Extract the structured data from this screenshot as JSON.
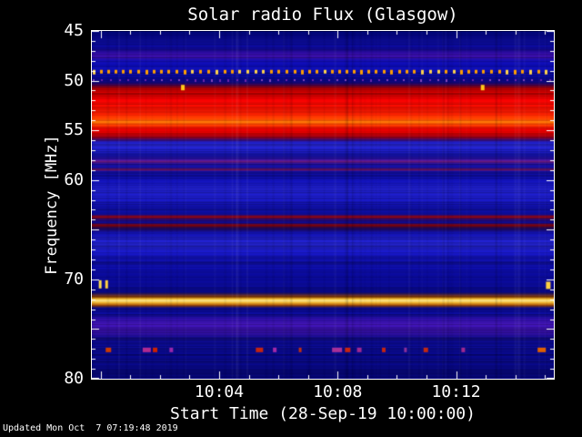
{
  "footer": "Updated Mon Oct  7 07:19:48 2019",
  "chart_data": {
    "type": "heatmap",
    "title": "Solar radio Flux (Glasgow)",
    "xlabel": "Start Time (28-Sep-19 10:00:00)",
    "ylabel": "Frequency [MHz]",
    "x_unit": "minutes after 10:00:00 on 28-Sep-19",
    "x_range": [
      -0.3,
      15.3
    ],
    "x_minor_step": 1,
    "x_major_ticks": [
      {
        "minute": 0,
        "label": ""
      },
      {
        "minute": 4,
        "label": "10:04"
      },
      {
        "minute": 8,
        "label": "10:08"
      },
      {
        "minute": 12,
        "label": "10:12"
      }
    ],
    "y_range": [
      45,
      80
    ],
    "y_axis_inverted": true,
    "y_minor_step": 1,
    "y_major_ticks": [
      {
        "f": 45,
        "label": "45"
      },
      {
        "f": 50,
        "label": "50"
      },
      {
        "f": 55,
        "label": "55"
      },
      {
        "f": 60,
        "label": "60"
      },
      {
        "f": 65,
        "label": ""
      },
      {
        "f": 70,
        "label": "70"
      },
      {
        "f": 75,
        "label": ""
      },
      {
        "f": 80,
        "label": "80"
      }
    ],
    "background": "#000000",
    "axis_color": "#ffffff",
    "noise_seed": 7,
    "frequency_profile": [
      [
        45.0,
        "#000670"
      ],
      [
        45.5,
        "#05057e"
      ],
      [
        46.0,
        "#0c0c9a"
      ],
      [
        46.4,
        "#0a0a92"
      ],
      [
        46.8,
        "#100a9e"
      ],
      [
        47.2,
        "#2e0c9e"
      ],
      [
        47.6,
        "#3c10aa"
      ],
      [
        48.0,
        "#120ead"
      ],
      [
        48.4,
        "#0c0ca6"
      ],
      [
        48.9,
        "#0e0eb0"
      ],
      [
        49.4,
        "#0a0aa0"
      ],
      [
        49.8,
        "#070784"
      ],
      [
        50.2,
        "#12087e"
      ],
      [
        50.5,
        "#4c0030"
      ],
      [
        50.8,
        "#a80000"
      ],
      [
        51.2,
        "#de0000"
      ],
      [
        52.0,
        "#e60202"
      ],
      [
        52.8,
        "#e81000"
      ],
      [
        53.4,
        "#f02000"
      ],
      [
        53.9,
        "#ff4a00"
      ],
      [
        54.15,
        "#ff7a08"
      ],
      [
        54.45,
        "#ff3c00"
      ],
      [
        54.9,
        "#e00000"
      ],
      [
        55.3,
        "#cc0000"
      ],
      [
        55.7,
        "#8c0018"
      ],
      [
        55.95,
        "#3c0a64"
      ],
      [
        56.2,
        "#1c1cb2"
      ],
      [
        56.6,
        "#2626cc"
      ],
      [
        57.0,
        "#1c1cb8"
      ],
      [
        57.5,
        "#1212a4"
      ],
      [
        57.9,
        "#2a109c"
      ],
      [
        58.15,
        "#6e1a80"
      ],
      [
        58.4,
        "#1a109c"
      ],
      [
        58.75,
        "#12109a"
      ],
      [
        58.95,
        "#7c1458"
      ],
      [
        59.15,
        "#100e98"
      ],
      [
        59.7,
        "#0e0ea2"
      ],
      [
        60.3,
        "#1414b2"
      ],
      [
        60.9,
        "#2020c8"
      ],
      [
        61.7,
        "#1c1cc0"
      ],
      [
        62.4,
        "#1212a8"
      ],
      [
        63.0,
        "#0e0e9c"
      ],
      [
        63.45,
        "#0c0c92"
      ],
      [
        63.7,
        "#8c0404"
      ],
      [
        63.95,
        "#2a0866"
      ],
      [
        64.3,
        "#0a0a88"
      ],
      [
        64.55,
        "#840404"
      ],
      [
        64.85,
        "#22085c"
      ],
      [
        65.3,
        "#10109e"
      ],
      [
        65.8,
        "#1c1cbe"
      ],
      [
        66.5,
        "#2424ce"
      ],
      [
        67.1,
        "#1a1abe"
      ],
      [
        67.7,
        "#1212aa"
      ],
      [
        68.4,
        "#0e0ea0"
      ],
      [
        69.1,
        "#0c0c98"
      ],
      [
        69.8,
        "#0a0a92"
      ],
      [
        70.6,
        "#0a0a8e"
      ],
      [
        71.3,
        "#090988"
      ],
      [
        71.75,
        "#883c00"
      ],
      [
        72.0,
        "#ffcc3c"
      ],
      [
        72.15,
        "#ffeb96"
      ],
      [
        72.3,
        "#ffc83c"
      ],
      [
        72.6,
        "#944400"
      ],
      [
        72.9,
        "#0a0a8a"
      ],
      [
        73.5,
        "#0c0c92"
      ],
      [
        74.0,
        "#2c0ea0"
      ],
      [
        74.5,
        "#3e14aa"
      ],
      [
        75.0,
        "#34109c"
      ],
      [
        75.5,
        "#2a0e92"
      ],
      [
        75.9,
        "#120c88"
      ],
      [
        76.4,
        "#0a0a84"
      ],
      [
        77.0,
        "#0b0b8a"
      ],
      [
        77.6,
        "#080880"
      ],
      [
        78.1,
        "#0a0a88"
      ],
      [
        78.7,
        "#08087e"
      ],
      [
        79.3,
        "#070778"
      ],
      [
        80.0,
        "#060672"
      ]
    ],
    "features": {
      "dotted_rows": [
        {
          "f": 49.1,
          "h": 4,
          "dot_w": 3,
          "gap": 8,
          "color": "#ff9f00",
          "alt_color": "#ffd24a",
          "alpha": 1
        },
        {
          "f": 49.95,
          "h": 2,
          "dot_w": 2,
          "gap": 9,
          "color": "#7a2ab0",
          "alt_color": "#944fc2",
          "alpha": 0.85
        }
      ],
      "specks": [
        {
          "f": 50.7,
          "x": 0.197,
          "w": 4,
          "h": 6,
          "c": "#ffc818"
        },
        {
          "f": 50.7,
          "x": 0.846,
          "w": 4,
          "h": 6,
          "c": "#ffc818"
        }
      ],
      "edge_marks": [
        {
          "f": 70.5,
          "x": 0.018,
          "w": 3,
          "h": 9,
          "c": "#ffe050"
        },
        {
          "f": 70.5,
          "x": 0.032,
          "w": 3,
          "h": 9,
          "c": "#ffd040"
        },
        {
          "f": 70.6,
          "x": 0.988,
          "w": 5,
          "h": 8,
          "c": "#ffd040"
        }
      ],
      "dash_row": {
        "f": 77.1,
        "h": 5,
        "dashes": [
          {
            "x": 0.03,
            "w": 6,
            "c": "#cc3a00"
          },
          {
            "x": 0.11,
            "w": 9,
            "c": "#b02a90"
          },
          {
            "x": 0.132,
            "w": 5,
            "c": "#cc2200"
          },
          {
            "x": 0.168,
            "w": 4,
            "c": "#9a26aa"
          },
          {
            "x": 0.355,
            "w": 8,
            "c": "#c42410"
          },
          {
            "x": 0.392,
            "w": 4,
            "c": "#a428a8"
          },
          {
            "x": 0.448,
            "w": 3,
            "c": "#c03010"
          },
          {
            "x": 0.52,
            "w": 11,
            "c": "#a83098"
          },
          {
            "x": 0.548,
            "w": 6,
            "c": "#c82410"
          },
          {
            "x": 0.574,
            "w": 5,
            "c": "#a02890"
          },
          {
            "x": 0.628,
            "w": 4,
            "c": "#c42410"
          },
          {
            "x": 0.676,
            "w": 3,
            "c": "#8c2f9a"
          },
          {
            "x": 0.718,
            "w": 5,
            "c": "#c22812"
          },
          {
            "x": 0.8,
            "w": 4,
            "c": "#a02890"
          },
          {
            "x": 0.965,
            "w": 9,
            "c": "#e06000"
          }
        ]
      }
    }
  }
}
